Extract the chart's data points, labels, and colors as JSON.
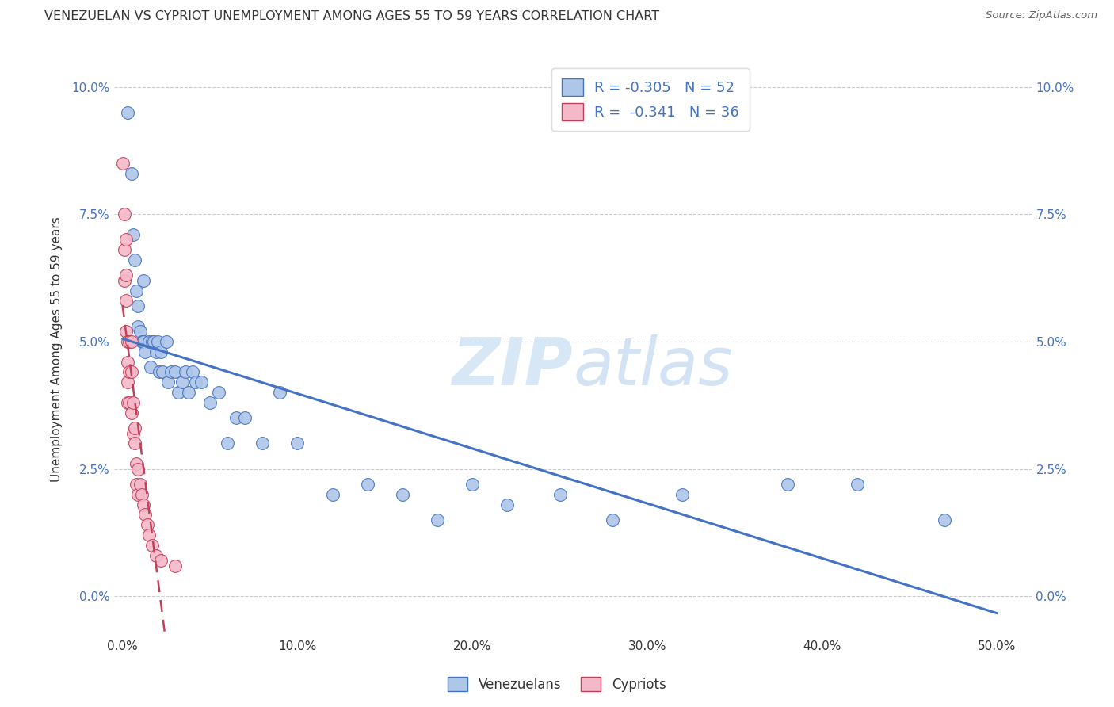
{
  "title": "VENEZUELAN VS CYPRIOT UNEMPLOYMENT AMONG AGES 55 TO 59 YEARS CORRELATION CHART",
  "source": "Source: ZipAtlas.com",
  "ylabel_label": "Unemployment Among Ages 55 to 59 years",
  "watermark_text": "ZIPatlas",
  "ven_color": "#aec6e8",
  "cyp_color": "#f4b8c8",
  "ven_line_color": "#4472c4",
  "cyp_line_color": "#c0405a",
  "legend_ven": "R = -0.305   N = 52",
  "legend_cyp": "R =  -0.341   N = 36",
  "legend_bottom_ven": "Venezuelans",
  "legend_bottom_cyp": "Cypriots",
  "venezuelan_x": [
    0.003,
    0.005,
    0.006,
    0.007,
    0.008,
    0.009,
    0.009,
    0.01,
    0.011,
    0.012,
    0.012,
    0.013,
    0.015,
    0.016,
    0.017,
    0.018,
    0.019,
    0.02,
    0.021,
    0.022,
    0.023,
    0.025,
    0.026,
    0.028,
    0.03,
    0.032,
    0.034,
    0.036,
    0.038,
    0.04,
    0.042,
    0.045,
    0.05,
    0.055,
    0.06,
    0.065,
    0.07,
    0.08,
    0.09,
    0.1,
    0.12,
    0.14,
    0.16,
    0.18,
    0.2,
    0.22,
    0.25,
    0.28,
    0.32,
    0.38,
    0.42,
    0.47
  ],
  "venezuelan_y": [
    0.095,
    0.083,
    0.071,
    0.066,
    0.06,
    0.057,
    0.053,
    0.052,
    0.05,
    0.062,
    0.05,
    0.048,
    0.05,
    0.045,
    0.05,
    0.05,
    0.048,
    0.05,
    0.044,
    0.048,
    0.044,
    0.05,
    0.042,
    0.044,
    0.044,
    0.04,
    0.042,
    0.044,
    0.04,
    0.044,
    0.042,
    0.042,
    0.038,
    0.04,
    0.03,
    0.035,
    0.035,
    0.03,
    0.04,
    0.03,
    0.02,
    0.022,
    0.02,
    0.015,
    0.022,
    0.018,
    0.02,
    0.015,
    0.02,
    0.022,
    0.022,
    0.015
  ],
  "cypriot_x": [
    0.0,
    0.001,
    0.001,
    0.001,
    0.002,
    0.002,
    0.002,
    0.002,
    0.003,
    0.003,
    0.003,
    0.003,
    0.004,
    0.004,
    0.004,
    0.005,
    0.005,
    0.005,
    0.006,
    0.006,
    0.007,
    0.007,
    0.008,
    0.008,
    0.009,
    0.009,
    0.01,
    0.011,
    0.012,
    0.013,
    0.014,
    0.015,
    0.017,
    0.019,
    0.022,
    0.03
  ],
  "cypriot_y": [
    0.085,
    0.075,
    0.068,
    0.062,
    0.07,
    0.063,
    0.058,
    0.052,
    0.05,
    0.046,
    0.042,
    0.038,
    0.05,
    0.044,
    0.038,
    0.05,
    0.044,
    0.036,
    0.038,
    0.032,
    0.033,
    0.03,
    0.026,
    0.022,
    0.025,
    0.02,
    0.022,
    0.02,
    0.018,
    0.016,
    0.014,
    0.012,
    0.01,
    0.008,
    0.007,
    0.006
  ],
  "xlim": [
    -0.005,
    0.52
  ],
  "ylim": [
    -0.008,
    0.105
  ],
  "xticks": [
    0.0,
    0.1,
    0.2,
    0.3,
    0.4,
    0.5
  ],
  "yticks": [
    0.0,
    0.025,
    0.05,
    0.075,
    0.1
  ],
  "background_color": "#ffffff",
  "grid_color": "#cccccc"
}
